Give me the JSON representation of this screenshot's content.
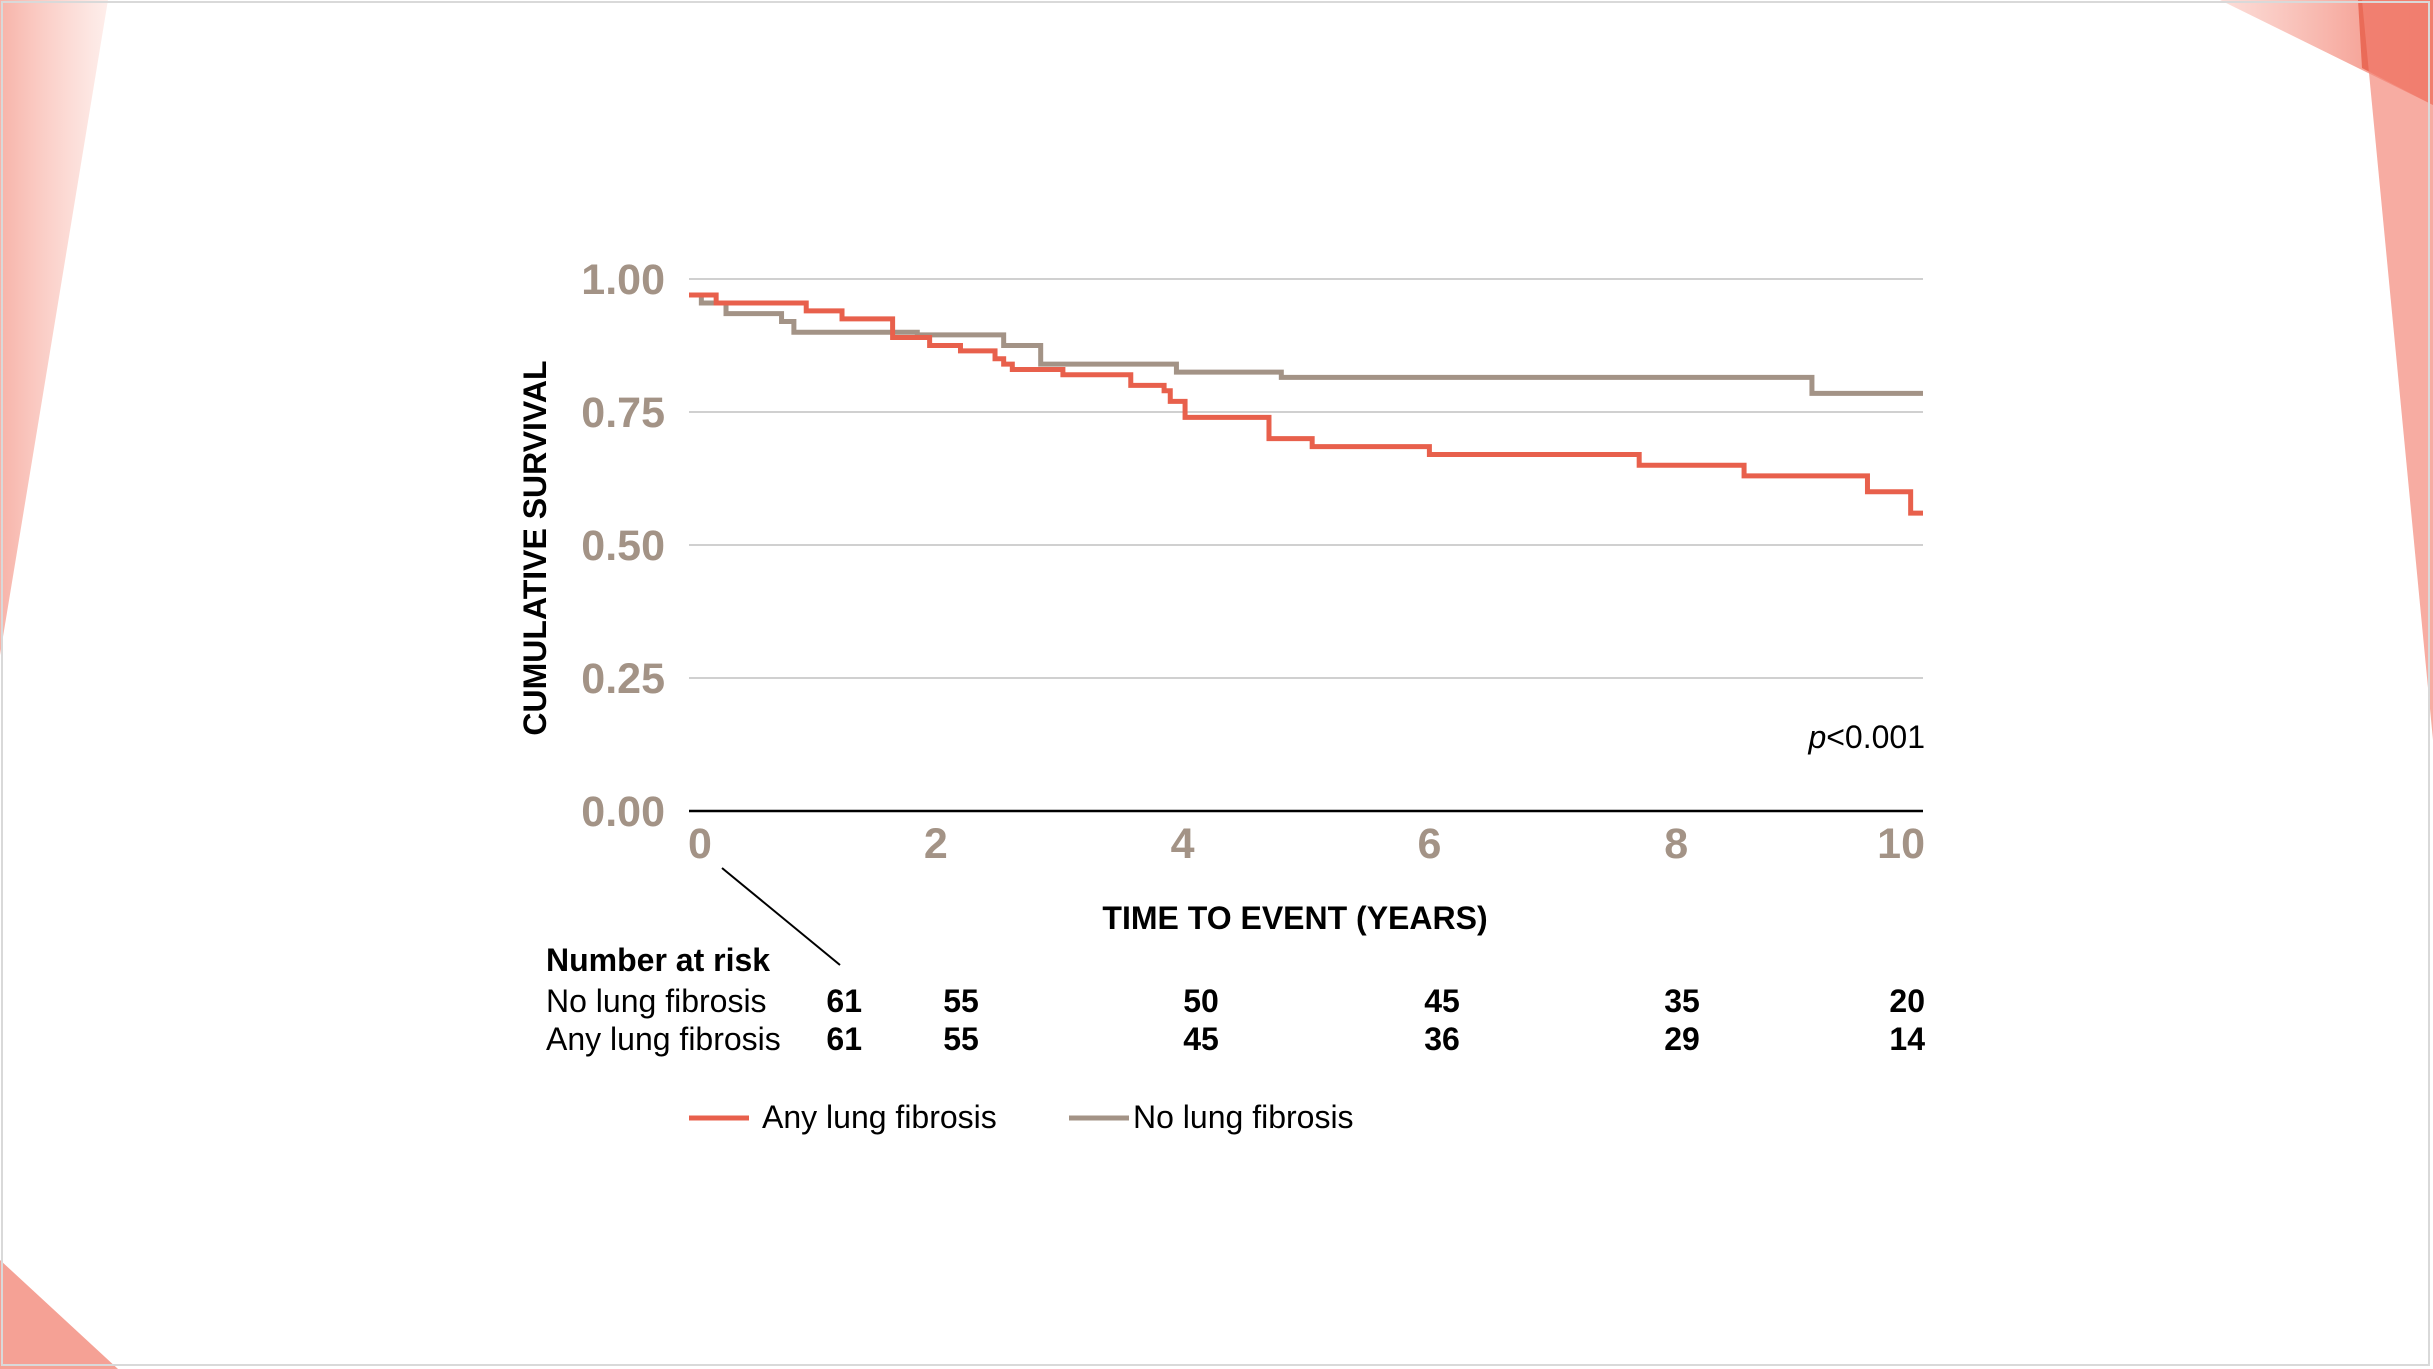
{
  "chart_data": {
    "type": "line",
    "step": true,
    "ylabel": "CUMULATIVE SURVIVAL",
    "xlabel": "TIME TO EVENT (YEARS)",
    "xlim": [
      0,
      10
    ],
    "ylim": [
      0,
      1
    ],
    "x_ticks": [
      0,
      2,
      4,
      6,
      8,
      10
    ],
    "x_tick_labels": [
      "0",
      "2",
      "4",
      "6",
      "8",
      "10"
    ],
    "y_ticks": [
      0,
      0.25,
      0.5,
      0.75,
      1
    ],
    "y_tick_labels": [
      "0.00",
      "0.25",
      "0.50",
      "0.75",
      "1.00"
    ],
    "grid": true,
    "annotation": {
      "prefix": "p",
      "text": "<0.001"
    },
    "series": [
      {
        "name": "Any lung fibrosis",
        "color": "#e8604c",
        "points": [
          [
            0,
            0.97
          ],
          [
            0.22,
            0.955
          ],
          [
            0.95,
            0.94
          ],
          [
            1.24,
            0.925
          ],
          [
            1.65,
            0.89
          ],
          [
            1.95,
            0.875
          ],
          [
            2.2,
            0.865
          ],
          [
            2.48,
            0.85
          ],
          [
            2.55,
            0.84
          ],
          [
            2.62,
            0.83
          ],
          [
            3.03,
            0.82
          ],
          [
            3.58,
            0.8
          ],
          [
            3.85,
            0.79
          ],
          [
            3.9,
            0.77
          ],
          [
            4.02,
            0.74
          ],
          [
            4.7,
            0.7
          ],
          [
            5.05,
            0.685
          ],
          [
            6.0,
            0.67
          ],
          [
            7.7,
            0.65
          ],
          [
            8.55,
            0.63
          ],
          [
            9.55,
            0.6
          ],
          [
            9.9,
            0.56
          ],
          [
            10.0,
            0.56
          ]
        ]
      },
      {
        "name": "No lung fibrosis",
        "color": "#a39386",
        "points": [
          [
            0,
            0.97
          ],
          [
            0.1,
            0.955
          ],
          [
            0.3,
            0.935
          ],
          [
            0.75,
            0.92
          ],
          [
            0.85,
            0.9
          ],
          [
            1.85,
            0.895
          ],
          [
            2.55,
            0.875
          ],
          [
            2.85,
            0.84
          ],
          [
            3.95,
            0.825
          ],
          [
            4.8,
            0.815
          ],
          [
            9.1,
            0.785
          ],
          [
            10.0,
            0.785
          ]
        ]
      }
    ],
    "number_at_risk": {
      "title": "Number at risk",
      "times": [
        0,
        2,
        4,
        6,
        8,
        10
      ],
      "rows": [
        {
          "label": "No lung fibrosis",
          "values": [
            "61",
            "55",
            "50",
            "45",
            "35",
            "20"
          ]
        },
        {
          "label": "Any lung fibrosis",
          "values": [
            "61",
            "55",
            "45",
            "36",
            "29",
            "14"
          ]
        }
      ]
    },
    "legend": [
      {
        "label": "Any lung fibrosis",
        "color": "#e8604c"
      },
      {
        "label": "No lung fibrosis",
        "color": "#a39386"
      }
    ]
  },
  "colors": {
    "accent": "#e8604c",
    "accent_light": "#f6a79a",
    "neutral": "#a39386",
    "gridline": "#d0d0d0"
  }
}
